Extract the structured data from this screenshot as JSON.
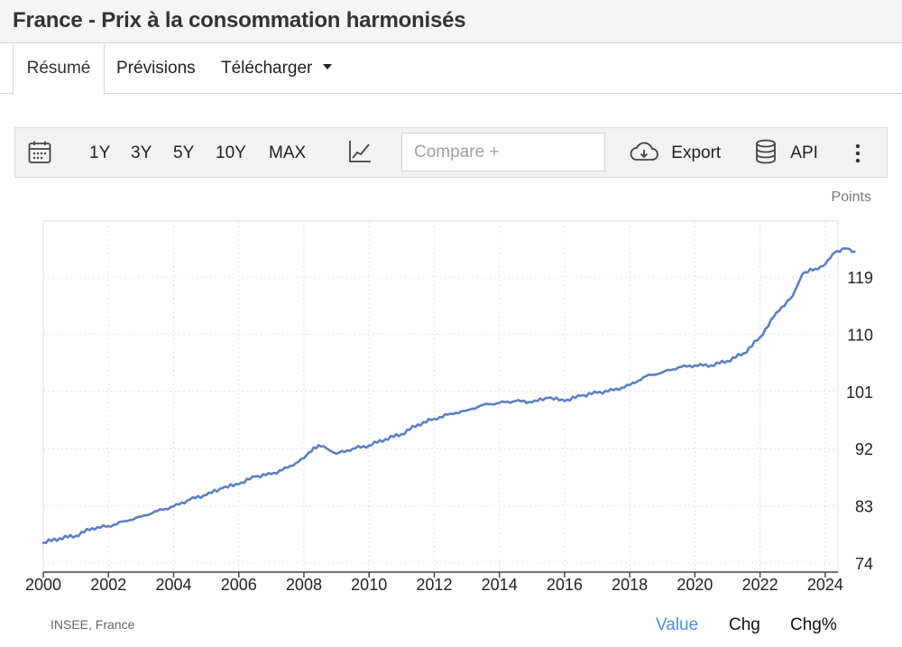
{
  "page": {
    "title": "France - Prix à la consommation harmonisés"
  },
  "tabs": [
    {
      "label": "Résumé",
      "active": true
    },
    {
      "label": "Prévisions"
    },
    {
      "label": "Télécharger"
    }
  ],
  "toolbar": {
    "ranges": [
      "1Y",
      "3Y",
      "5Y",
      "10Y",
      "MAX"
    ],
    "compare_placeholder": "Compare +",
    "export_label": "Export",
    "api_label": "API",
    "icons": [
      "calendar-icon",
      "line-chart-icon",
      "cloud-download-icon",
      "database-icon",
      "more-vertical-icon"
    ]
  },
  "footer": {
    "source": "INSEE, France",
    "modes": [
      "Value",
      "Chg",
      "Chg%"
    ],
    "active_mode": "Value"
  },
  "colors": {
    "line": "#5a80bf",
    "active_mode": "#4a8fd8",
    "grid": "#e2e2e2"
  },
  "chart_data": {
    "type": "line",
    "title": "",
    "xlabel": "",
    "ylabel": "Points",
    "xlim": [
      2000,
      2024.9
    ],
    "ylim": [
      74,
      125
    ],
    "x_ticks": [
      "2000",
      "2002",
      "2004",
      "2006",
      "2008",
      "2010",
      "2012",
      "2014",
      "2016",
      "2018",
      "2020",
      "2022",
      "2024"
    ],
    "y_ticks": [
      74,
      83,
      92,
      101,
      110,
      119
    ],
    "grid": true,
    "y_axis_position": "right",
    "series": [
      {
        "points": [
          [
            2000.0,
            77.2
          ],
          [
            2000.5,
            77.9
          ],
          [
            2001.0,
            78.3
          ],
          [
            2001.5,
            79.5
          ],
          [
            2002.0,
            79.8
          ],
          [
            2002.5,
            80.6
          ],
          [
            2003.0,
            81.3
          ],
          [
            2003.5,
            82.2
          ],
          [
            2004.0,
            82.9
          ],
          [
            2004.5,
            84.0
          ],
          [
            2005.0,
            84.7
          ],
          [
            2005.5,
            85.8
          ],
          [
            2006.0,
            86.4
          ],
          [
            2006.5,
            87.6
          ],
          [
            2007.0,
            88.0
          ],
          [
            2007.5,
            89.0
          ],
          [
            2008.0,
            90.5
          ],
          [
            2008.3,
            92.2
          ],
          [
            2008.6,
            92.4
          ],
          [
            2009.0,
            91.2
          ],
          [
            2009.5,
            92.0
          ],
          [
            2010.0,
            92.5
          ],
          [
            2010.5,
            93.5
          ],
          [
            2011.0,
            94.3
          ],
          [
            2011.5,
            95.8
          ],
          [
            2012.0,
            96.7
          ],
          [
            2012.5,
            97.5
          ],
          [
            2013.0,
            98.0
          ],
          [
            2013.5,
            98.9
          ],
          [
            2014.0,
            99.2
          ],
          [
            2014.5,
            99.5
          ],
          [
            2015.0,
            99.3
          ],
          [
            2015.5,
            100.0
          ],
          [
            2016.0,
            99.5
          ],
          [
            2016.5,
            100.3
          ],
          [
            2017.0,
            100.8
          ],
          [
            2017.5,
            101.2
          ],
          [
            2018.0,
            102.0
          ],
          [
            2018.5,
            103.4
          ],
          [
            2019.0,
            104.0
          ],
          [
            2019.5,
            104.8
          ],
          [
            2020.0,
            105.1
          ],
          [
            2020.5,
            105.1
          ],
          [
            2021.0,
            105.8
          ],
          [
            2021.5,
            107.0
          ],
          [
            2022.0,
            109.5
          ],
          [
            2022.5,
            113.4
          ],
          [
            2023.0,
            116.0
          ],
          [
            2023.3,
            119.5
          ],
          [
            2023.7,
            120.3
          ],
          [
            2024.0,
            121.0
          ],
          [
            2024.3,
            122.9
          ],
          [
            2024.6,
            123.5
          ],
          [
            2024.9,
            123.0
          ]
        ]
      }
    ]
  }
}
